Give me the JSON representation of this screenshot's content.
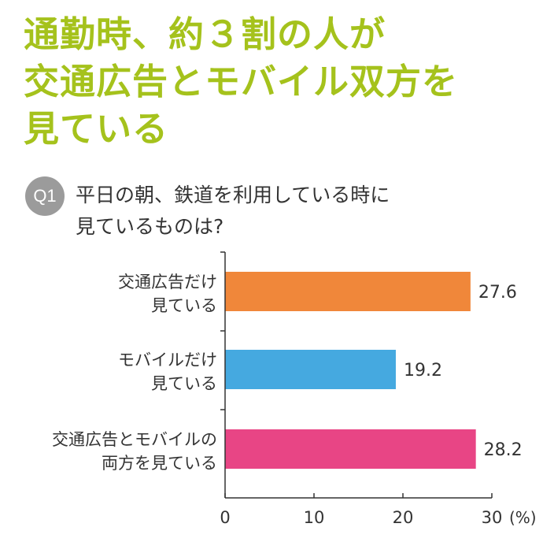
{
  "headline": {
    "line1": "通勤時、約３割の人が",
    "line2": "交通広告とモバイル双方を",
    "line3": "見ている"
  },
  "question": {
    "badge": "Q1",
    "line1": "平日の朝、鉄道を利用している時に",
    "line2": "見ているものは?"
  },
  "chart_data": {
    "type": "bar",
    "orientation": "horizontal",
    "categories": [
      [
        "交通広告だけ",
        "見ている"
      ],
      [
        "モバイルだけ",
        "見ている"
      ],
      [
        "交通広告とモバイルの",
        "両方を見ている"
      ]
    ],
    "values": [
      27.6,
      19.2,
      28.2
    ],
    "value_labels": [
      "27.6",
      "19.2",
      "28.2"
    ],
    "colors": [
      "#f0873a",
      "#45a9e0",
      "#e84585"
    ],
    "xlim": [
      0,
      30
    ],
    "xticks": [
      0,
      10,
      20,
      30
    ],
    "xtick_labels": [
      "0",
      "10",
      "20",
      "30"
    ],
    "xunit": "(%)",
    "grid": false
  }
}
